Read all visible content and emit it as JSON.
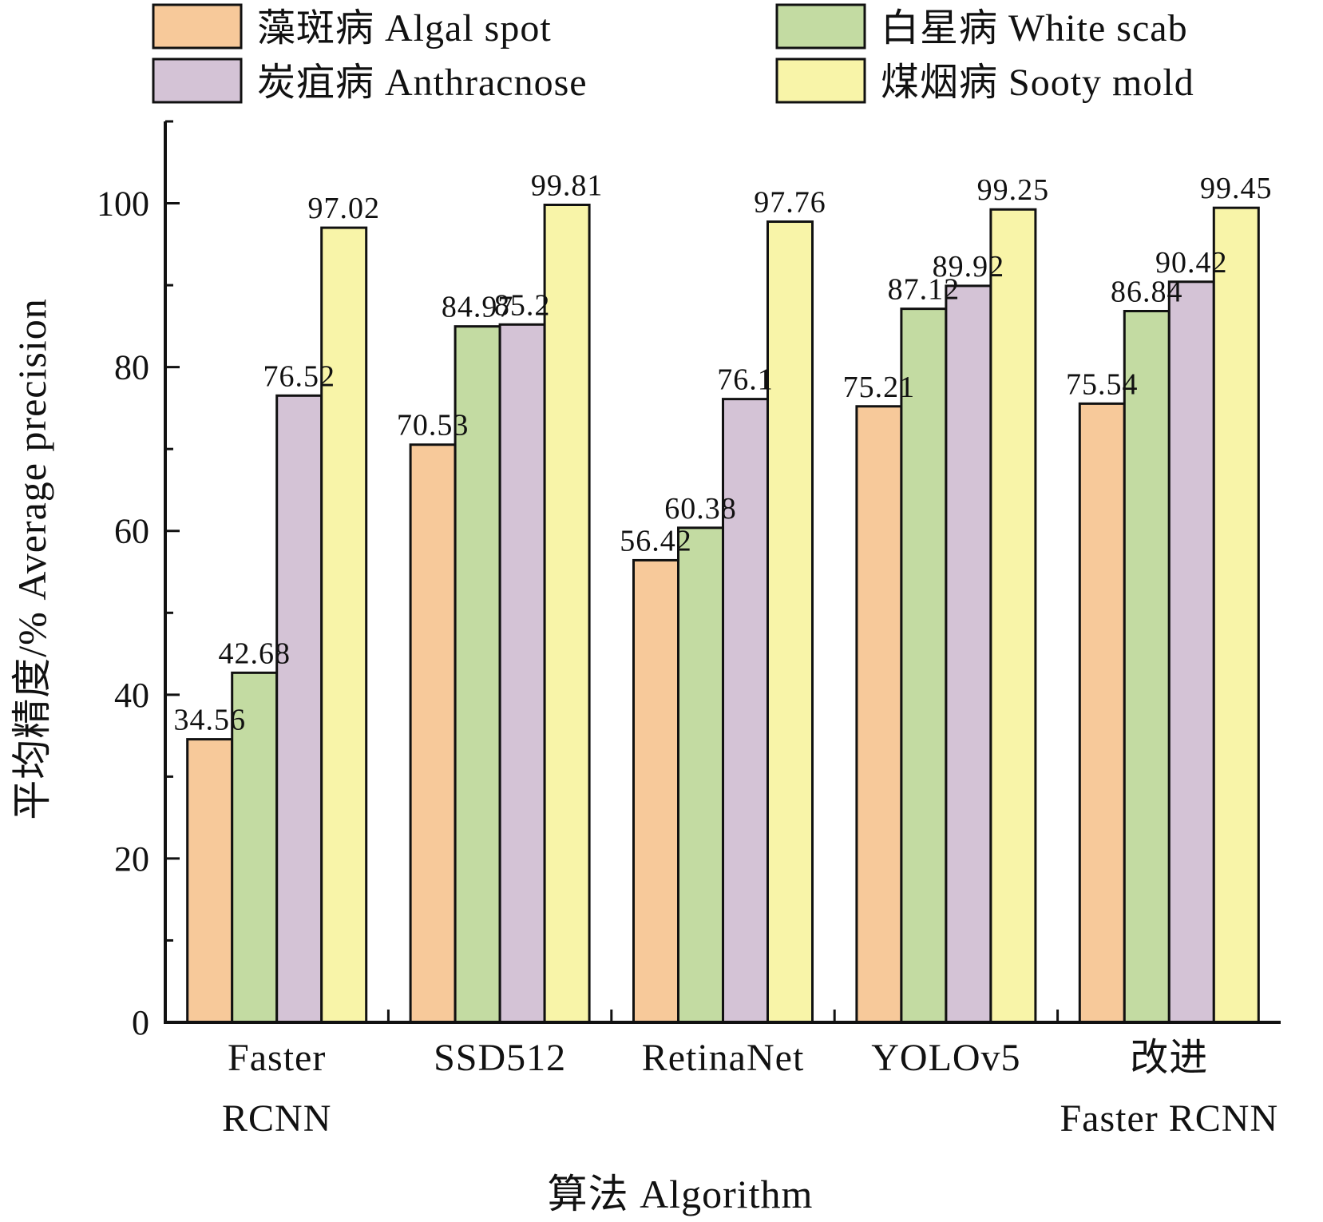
{
  "chart_data": {
    "type": "bar",
    "xlabel": "算法 Algorithm",
    "ylabel": "平均精度/% Average precision",
    "ylim": [
      0,
      110
    ],
    "yticks": [
      0,
      20,
      40,
      60,
      80,
      100
    ],
    "grid": false,
    "legend_position": "top",
    "categories": [
      [
        "Faster",
        "RCNN"
      ],
      [
        "SSD512"
      ],
      [
        "RetinaNet"
      ],
      [
        "YOLOv5"
      ],
      [
        "改进",
        "Faster RCNN"
      ]
    ],
    "series": [
      {
        "name": "藻斑病 Algal spot",
        "color": "#F7C99A",
        "values": [
          34.56,
          70.53,
          56.42,
          75.21,
          75.54
        ],
        "labels": [
          "34.56",
          "70.53",
          "56.42",
          "75.21",
          "75.54"
        ]
      },
      {
        "name": "白星病 White scab",
        "color": "#C3DBA2",
        "values": [
          42.68,
          84.97,
          60.38,
          87.12,
          86.84
        ],
        "labels": [
          "42.68",
          "84.97",
          "60.38",
          "87.12",
          "86.84"
        ]
      },
      {
        "name": "炭疽病 Anthracnose",
        "color": "#D4C3D6",
        "values": [
          76.52,
          85.2,
          76.1,
          89.92,
          90.42
        ],
        "labels": [
          "76.52",
          "85.2",
          "76.1",
          "89.92",
          "90.42"
        ]
      },
      {
        "name": "煤烟病 Sooty mold",
        "color": "#F8F4A8",
        "values": [
          97.02,
          99.81,
          97.76,
          99.25,
          99.45
        ],
        "labels": [
          "97.02",
          "99.81",
          "97.76",
          "99.25",
          "99.45"
        ]
      }
    ]
  }
}
